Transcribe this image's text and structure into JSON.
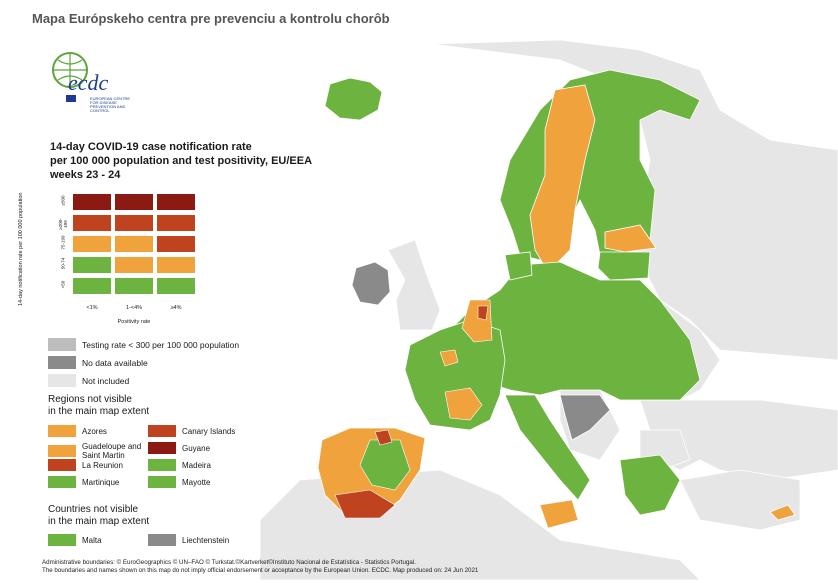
{
  "header": {
    "title": "Mapa Európskeho centra pre prevenciu a kontrolu chorôb"
  },
  "logo": {
    "name": "ecdc-logo-icon",
    "wordmark": "ecdc",
    "subtitle": "EUROPEAN CENTRE FOR DISEASE PREVENTION AND CONTROL"
  },
  "map_title": {
    "line1": "14-day COVID-19 case notification rate",
    "line2": "per 100 000 population and test positivity, EU/EEA",
    "line3": "weeks 23 - 24"
  },
  "matrix": {
    "y_axis_title": "14-day notification rate per 100 000 population",
    "x_axis_title": "Positivity rate",
    "y_ticks": [
      "≥500",
      "≥200-499",
      "75-199",
      "50-74",
      "<50"
    ],
    "x_ticks": [
      "<1%",
      "1-<4%",
      "≥4%"
    ],
    "rows": [
      [
        "#8b1a12",
        "#8b1a12",
        "#8b1a12"
      ],
      [
        "#c0431f",
        "#c0431f",
        "#c0431f"
      ],
      [
        "#f0a33c",
        "#f0a33c",
        "#c0431f"
      ],
      [
        "#6db33f",
        "#f0a33c",
        "#f0a33c"
      ],
      [
        "#6db33f",
        "#6db33f",
        "#6db33f"
      ]
    ]
  },
  "legend": {
    "testing_low": {
      "label": "Testing rate < 300 per 100 000 population",
      "color": "#bdbdbd"
    },
    "no_data": {
      "label": "No data available",
      "color": "#8a8a8a"
    },
    "not_included": {
      "label": "Not included",
      "color": "#e6e6e6"
    }
  },
  "regions": {
    "heading1": "Regions not visible",
    "heading2": "in the main map extent",
    "items": [
      {
        "label": "Azores",
        "color": "#f0a33c"
      },
      {
        "label": "Canary Islands",
        "color": "#c0431f"
      },
      {
        "label": "Guadeloupe and Saint Martin",
        "color": "#f0a33c"
      },
      {
        "label": "Guyane",
        "color": "#8b1a12"
      },
      {
        "label": "La Reunion",
        "color": "#c0431f"
      },
      {
        "label": "Madeira",
        "color": "#6db33f"
      },
      {
        "label": "Martinique",
        "color": "#6db33f"
      },
      {
        "label": "Mayotte",
        "color": "#6db33f"
      }
    ]
  },
  "countries": {
    "heading1": "Countries not visible",
    "heading2": "in the main map extent",
    "items": [
      {
        "label": "Malta",
        "color": "#6db33f"
      },
      {
        "label": "Liechtenstein",
        "color": "#8a8a8a"
      }
    ]
  },
  "footnote": {
    "line1": "Administrative boundaries: © EuroGeographics © UN–FAO © Turkstat.©Kartverket©Instituto Nacional de Estatística - Statistics Portugal.",
    "line2": "The boundaries and names shown on this map do not imply official endorsement or acceptance by the European Union. ECDC. Map produced on: 24 Jun 2021"
  },
  "colors": {
    "green": "#6db33f",
    "orange": "#f0a33c",
    "red": "#c0431f",
    "darkred": "#8b1a12",
    "grey": "#8a8a8a",
    "lightgrey": "#e6e6e6"
  }
}
